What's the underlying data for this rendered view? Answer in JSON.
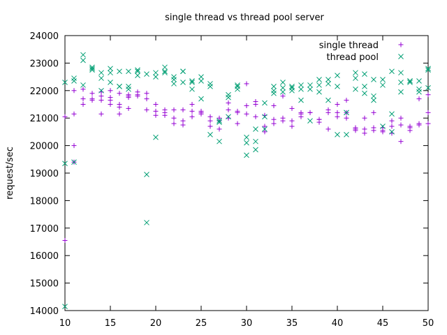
{
  "chart_data": {
    "type": "scatter",
    "title": "single thread vs thread pool server",
    "xlabel": "",
    "ylabel": "request/sec",
    "xlim": [
      10,
      50
    ],
    "ylim": [
      14000,
      24000
    ],
    "xticks": [
      10,
      15,
      20,
      25,
      30,
      35,
      40,
      45,
      50
    ],
    "yticks": [
      14000,
      15000,
      16000,
      17000,
      18000,
      19000,
      20000,
      21000,
      22000,
      23000,
      24000
    ],
    "grid": false,
    "legend_position": "top-right",
    "series": [
      {
        "name": "single thread",
        "marker": "plus",
        "color": "#9400d3",
        "points": [
          [
            10,
            16550
          ],
          [
            10,
            21050
          ],
          [
            11,
            20000
          ],
          [
            11,
            21150
          ],
          [
            11,
            22000
          ],
          [
            11,
            19400
          ],
          [
            12,
            21500
          ],
          [
            12,
            21700
          ],
          [
            12,
            22050
          ],
          [
            13,
            21650
          ],
          [
            13,
            21700
          ],
          [
            13,
            21900
          ],
          [
            14,
            21150
          ],
          [
            14,
            21650
          ],
          [
            14,
            21800
          ],
          [
            14,
            21950
          ],
          [
            15,
            21500
          ],
          [
            15,
            21750
          ],
          [
            15,
            21650
          ],
          [
            15,
            22000
          ],
          [
            16,
            21150
          ],
          [
            16,
            21400
          ],
          [
            16,
            21500
          ],
          [
            16,
            21900
          ],
          [
            17,
            21350
          ],
          [
            17,
            21750
          ],
          [
            17,
            21850
          ],
          [
            17,
            21800
          ],
          [
            18,
            21850
          ],
          [
            18,
            21950
          ],
          [
            18,
            21800
          ],
          [
            19,
            21300
          ],
          [
            19,
            21700
          ],
          [
            19,
            21900
          ],
          [
            20,
            21100
          ],
          [
            20,
            21250
          ],
          [
            20,
            21500
          ],
          [
            21,
            21100
          ],
          [
            21,
            21200
          ],
          [
            21,
            21300
          ],
          [
            22,
            20800
          ],
          [
            22,
            21000
          ],
          [
            22,
            21300
          ],
          [
            23,
            20750
          ],
          [
            23,
            20900
          ],
          [
            23,
            21300
          ],
          [
            24,
            21050
          ],
          [
            24,
            21250
          ],
          [
            24,
            21500
          ],
          [
            25,
            21150
          ],
          [
            25,
            21200
          ],
          [
            25,
            21250
          ],
          [
            26,
            20700
          ],
          [
            26,
            20900
          ],
          [
            26,
            21050
          ],
          [
            27,
            20600
          ],
          [
            27,
            20900
          ],
          [
            27,
            21000
          ],
          [
            28,
            21000
          ],
          [
            28,
            21300
          ],
          [
            28,
            21550
          ],
          [
            29,
            20800
          ],
          [
            29,
            21200
          ],
          [
            29,
            21250
          ],
          [
            30,
            21150
          ],
          [
            30,
            21450
          ],
          [
            30,
            22250
          ],
          [
            31,
            21050
          ],
          [
            31,
            21500
          ],
          [
            31,
            21600
          ],
          [
            32,
            20500
          ],
          [
            32,
            20700
          ],
          [
            32,
            21100
          ],
          [
            33,
            20800
          ],
          [
            33,
            20950
          ],
          [
            33,
            21450
          ],
          [
            34,
            20900
          ],
          [
            34,
            21000
          ],
          [
            34,
            21800
          ],
          [
            35,
            20700
          ],
          [
            35,
            20900
          ],
          [
            35,
            21350
          ],
          [
            36,
            21050
          ],
          [
            36,
            21200
          ],
          [
            36,
            21150
          ],
          [
            37,
            21200
          ],
          [
            37,
            21200
          ],
          [
            38,
            20850
          ],
          [
            38,
            20950
          ],
          [
            38,
            20950
          ],
          [
            39,
            20600
          ],
          [
            39,
            21200
          ],
          [
            39,
            21300
          ],
          [
            40,
            21050
          ],
          [
            40,
            21200
          ],
          [
            40,
            21500
          ],
          [
            41,
            21000
          ],
          [
            41,
            21200
          ],
          [
            41,
            21650
          ],
          [
            42,
            20550
          ],
          [
            42,
            20600
          ],
          [
            42,
            20650
          ],
          [
            43,
            20450
          ],
          [
            43,
            20600
          ],
          [
            43,
            21000
          ],
          [
            44,
            20550
          ],
          [
            44,
            20650
          ],
          [
            44,
            21200
          ],
          [
            45,
            20500
          ],
          [
            45,
            20650
          ],
          [
            45,
            20550
          ],
          [
            46,
            20450
          ],
          [
            46,
            20700
          ],
          [
            46,
            20900
          ],
          [
            47,
            20150
          ],
          [
            47,
            20750
          ],
          [
            47,
            21000
          ],
          [
            48,
            20550
          ],
          [
            48,
            20650
          ],
          [
            48,
            20700
          ],
          [
            49,
            20750
          ],
          [
            49,
            20800
          ],
          [
            49,
            21700
          ],
          [
            50,
            20800
          ],
          [
            50,
            21200
          ],
          [
            50,
            21850
          ]
        ]
      },
      {
        "name": "thread pool",
        "marker": "cross",
        "color": "#009e73",
        "points": [
          [
            10,
            14150
          ],
          [
            10,
            19350
          ],
          [
            10,
            22300
          ],
          [
            11,
            19400
          ],
          [
            11,
            22350
          ],
          [
            11,
            22450
          ],
          [
            12,
            22200
          ],
          [
            12,
            23100
          ],
          [
            12,
            23300
          ],
          [
            13,
            22750
          ],
          [
            13,
            22850
          ],
          [
            13,
            22800
          ],
          [
            14,
            22000
          ],
          [
            14,
            22450
          ],
          [
            14,
            22650
          ],
          [
            15,
            22300
          ],
          [
            15,
            22650
          ],
          [
            15,
            22800
          ],
          [
            16,
            22150
          ],
          [
            16,
            22150
          ],
          [
            16,
            22700
          ],
          [
            17,
            22050
          ],
          [
            17,
            22150
          ],
          [
            17,
            22700
          ],
          [
            18,
            22550
          ],
          [
            18,
            22700
          ],
          [
            18,
            22750
          ],
          [
            19,
            17200
          ],
          [
            19,
            18950
          ],
          [
            19,
            22600
          ],
          [
            20,
            20300
          ],
          [
            20,
            22500
          ],
          [
            20,
            22650
          ],
          [
            21,
            22650
          ],
          [
            21,
            22700
          ],
          [
            21,
            22850
          ],
          [
            22,
            22250
          ],
          [
            22,
            22400
          ],
          [
            22,
            22500
          ],
          [
            23,
            22300
          ],
          [
            23,
            22700
          ],
          [
            23,
            22700
          ],
          [
            24,
            22050
          ],
          [
            24,
            22300
          ],
          [
            24,
            22350
          ],
          [
            25,
            21700
          ],
          [
            25,
            22350
          ],
          [
            25,
            22500
          ],
          [
            26,
            20400
          ],
          [
            26,
            22150
          ],
          [
            26,
            22250
          ],
          [
            27,
            20150
          ],
          [
            27,
            20900
          ],
          [
            27,
            20850
          ],
          [
            28,
            21050
          ],
          [
            28,
            21750
          ],
          [
            28,
            21850
          ],
          [
            29,
            22050
          ],
          [
            29,
            22150
          ],
          [
            29,
            22200
          ],
          [
            30,
            19650
          ],
          [
            30,
            20100
          ],
          [
            30,
            20300
          ],
          [
            31,
            19850
          ],
          [
            31,
            20150
          ],
          [
            31,
            20600
          ],
          [
            32,
            20600
          ],
          [
            32,
            21050
          ],
          [
            32,
            21550
          ],
          [
            33,
            21900
          ],
          [
            33,
            22000
          ],
          [
            33,
            22150
          ],
          [
            34,
            21950
          ],
          [
            34,
            22100
          ],
          [
            34,
            22300
          ],
          [
            35,
            22000
          ],
          [
            35,
            22100
          ],
          [
            35,
            22150
          ],
          [
            36,
            21650
          ],
          [
            36,
            22050
          ],
          [
            36,
            22200
          ],
          [
            37,
            20900
          ],
          [
            37,
            22050
          ],
          [
            37,
            22200
          ],
          [
            38,
            21950
          ],
          [
            38,
            22200
          ],
          [
            38,
            22400
          ],
          [
            39,
            21650
          ],
          [
            39,
            22250
          ],
          [
            39,
            22400
          ],
          [
            40,
            20400
          ],
          [
            40,
            22150
          ],
          [
            40,
            22550
          ],
          [
            41,
            20400
          ],
          [
            41,
            21200
          ],
          [
            41,
            21200
          ],
          [
            42,
            22050
          ],
          [
            42,
            22450
          ],
          [
            42,
            22650
          ],
          [
            43,
            21900
          ],
          [
            43,
            22150
          ],
          [
            43,
            22600
          ],
          [
            44,
            21650
          ],
          [
            44,
            21800
          ],
          [
            44,
            22400
          ],
          [
            45,
            20700
          ],
          [
            45,
            22200
          ],
          [
            45,
            22400
          ],
          [
            46,
            20500
          ],
          [
            46,
            21150
          ],
          [
            46,
            22700
          ],
          [
            47,
            21950
          ],
          [
            47,
            22300
          ],
          [
            47,
            22650
          ],
          [
            48,
            22300
          ],
          [
            48,
            22350
          ],
          [
            48,
            22350
          ],
          [
            49,
            21950
          ],
          [
            49,
            22050
          ],
          [
            49,
            22350
          ],
          [
            50,
            22100
          ],
          [
            50,
            22800
          ],
          [
            50,
            22750
          ]
        ]
      }
    ]
  }
}
